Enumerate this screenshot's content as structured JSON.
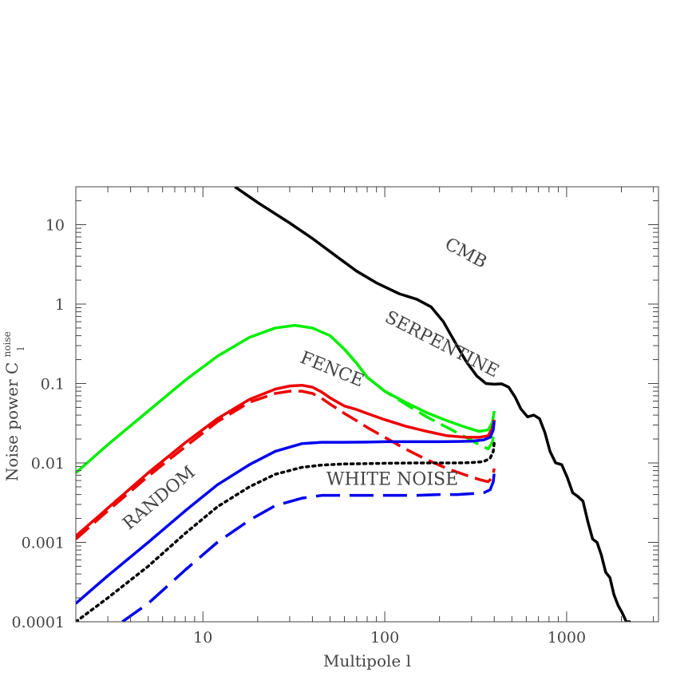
{
  "chart_data": {
    "type": "line",
    "xlabel": "Multipole l",
    "ylabel": "Noise power C",
    "ylabel_sup": "noise",
    "ylabel_sub": "l",
    "x_scale": "log",
    "y_scale": "log",
    "xlim": [
      2,
      3200
    ],
    "ylim": [
      0.0001,
      30
    ],
    "x_ticks": [
      {
        "value": 10,
        "label": "10"
      },
      {
        "value": 100,
        "label": "100"
      },
      {
        "value": 1000,
        "label": "1000"
      }
    ],
    "y_ticks": [
      {
        "value": 0.0001,
        "label": "0.0001"
      },
      {
        "value": 0.001,
        "label": "0.001"
      },
      {
        "value": 0.01,
        "label": "0.01"
      },
      {
        "value": 0.1,
        "label": "0.1"
      },
      {
        "value": 1,
        "label": "1"
      },
      {
        "value": 10,
        "label": "10"
      }
    ],
    "grid": false,
    "annotations": [
      {
        "text": "CMB",
        "x": 270,
        "y": 3.8,
        "rotate": 28
      },
      {
        "text": "SERPENTINE",
        "x": 200,
        "y": 0.27,
        "rotate": 27
      },
      {
        "text": "FENCE",
        "x": 50,
        "y": 0.13,
        "rotate": 22
      },
      {
        "text": "RANDOM",
        "x": 6,
        "y": 0.0032,
        "rotate": -40
      },
      {
        "text": "WHITE NOISE",
        "x": 110,
        "y": 0.0053,
        "rotate": 0
      }
    ],
    "series": [
      {
        "color": "#000000",
        "dash": "solid",
        "x": [
          15,
          20,
          30,
          40,
          55,
          70,
          90,
          120,
          150,
          180,
          210,
          240,
          280,
          320,
          360,
          400,
          440,
          480,
          520,
          560,
          610,
          660,
          710,
          760,
          810,
          870,
          940,
          1010,
          1080,
          1150,
          1230,
          1310,
          1390,
          1470,
          1550,
          1640,
          1730,
          1820,
          1920,
          2020,
          2130,
          2250
        ],
        "y": [
          30,
          19,
          10.5,
          6.7,
          3.9,
          2.6,
          1.85,
          1.35,
          1.15,
          0.92,
          0.6,
          0.35,
          0.19,
          0.125,
          0.1,
          0.098,
          0.099,
          0.09,
          0.068,
          0.048,
          0.038,
          0.04,
          0.036,
          0.024,
          0.014,
          0.01,
          0.0095,
          0.0065,
          0.0042,
          0.0038,
          0.0033,
          0.0018,
          0.0011,
          0.001,
          0.0007,
          0.00042,
          0.00036,
          0.00022,
          0.00016,
          0.00013,
          0.0001,
          0.0001
        ]
      },
      {
        "color": "#00ee00",
        "dash": "solid",
        "x": [
          2,
          3,
          5,
          8,
          12,
          18,
          25,
          32,
          40,
          50,
          60,
          70,
          80,
          100,
          130,
          170,
          220,
          280,
          330,
          370,
          390,
          400
        ],
        "y": [
          0.0075,
          0.017,
          0.045,
          0.11,
          0.22,
          0.38,
          0.5,
          0.54,
          0.5,
          0.4,
          0.27,
          0.18,
          0.12,
          0.08,
          0.058,
          0.043,
          0.034,
          0.028,
          0.025,
          0.026,
          0.032,
          0.045
        ]
      },
      {
        "color": "#00ee00",
        "dash": "dashed",
        "x": [
          60,
          70,
          80,
          100,
          130,
          170,
          220,
          280,
          330,
          370,
          390,
          400
        ],
        "y": [
          0.27,
          0.18,
          0.12,
          0.08,
          0.055,
          0.038,
          0.028,
          0.021,
          0.017,
          0.015,
          0.018,
          0.025
        ]
      },
      {
        "color": "#ee0000",
        "dash": "solid",
        "x": [
          2,
          3,
          5,
          8,
          12,
          18,
          25,
          30,
          35,
          40,
          45,
          50,
          60,
          70,
          80,
          100,
          130,
          170,
          220,
          280,
          330,
          370,
          390,
          400
        ],
        "y": [
          0.0012,
          0.0027,
          0.0075,
          0.018,
          0.036,
          0.063,
          0.085,
          0.093,
          0.095,
          0.09,
          0.078,
          0.066,
          0.052,
          0.047,
          0.042,
          0.035,
          0.029,
          0.025,
          0.022,
          0.021,
          0.021,
          0.022,
          0.027,
          0.035
        ]
      },
      {
        "color": "#ee0000",
        "dash": "dashed",
        "x": [
          2,
          3,
          5,
          8,
          12,
          18,
          25,
          30,
          35,
          40,
          45,
          50,
          60,
          70,
          80,
          100,
          130,
          170,
          220,
          280,
          330,
          370,
          390,
          400
        ],
        "y": [
          0.0011,
          0.0025,
          0.0068,
          0.016,
          0.033,
          0.058,
          0.075,
          0.08,
          0.08,
          0.075,
          0.065,
          0.055,
          0.042,
          0.034,
          0.028,
          0.021,
          0.015,
          0.011,
          0.0085,
          0.007,
          0.0062,
          0.0058,
          0.0065,
          0.0085
        ]
      },
      {
        "color": "#0000ee",
        "dash": "solid",
        "x": [
          2,
          3,
          5,
          8,
          12,
          18,
          25,
          35,
          45,
          60,
          80,
          100,
          150,
          200,
          250,
          300,
          350,
          380,
          395,
          400
        ],
        "y": [
          0.00017,
          0.00038,
          0.001,
          0.0025,
          0.0053,
          0.0095,
          0.014,
          0.0175,
          0.0182,
          0.0182,
          0.0183,
          0.0185,
          0.0185,
          0.0185,
          0.0186,
          0.0188,
          0.0195,
          0.021,
          0.026,
          0.034
        ]
      },
      {
        "color": "#000000",
        "dash": "dotted",
        "x": [
          2,
          3,
          5,
          8,
          12,
          18,
          25,
          35,
          45,
          60,
          80,
          100,
          150,
          200,
          250,
          300,
          350,
          380,
          395,
          400
        ],
        "y": [
          0.0001,
          0.0002,
          0.0005,
          0.0013,
          0.0028,
          0.005,
          0.0072,
          0.0088,
          0.0094,
          0.0097,
          0.0098,
          0.0099,
          0.01,
          0.01,
          0.01,
          0.0101,
          0.0104,
          0.0115,
          0.014,
          0.018
        ]
      },
      {
        "color": "#0000ee",
        "dash": "longdash",
        "x": [
          3.6,
          5,
          8,
          12,
          18,
          25,
          35,
          45,
          60,
          80,
          100,
          150,
          200,
          250,
          300,
          350,
          380,
          395,
          400
        ],
        "y": [
          0.0001,
          0.00017,
          0.00045,
          0.001,
          0.0019,
          0.0029,
          0.0036,
          0.0039,
          0.0039,
          0.0039,
          0.0039,
          0.0039,
          0.004,
          0.004,
          0.0041,
          0.0042,
          0.0046,
          0.0058,
          0.0075
        ]
      }
    ]
  }
}
